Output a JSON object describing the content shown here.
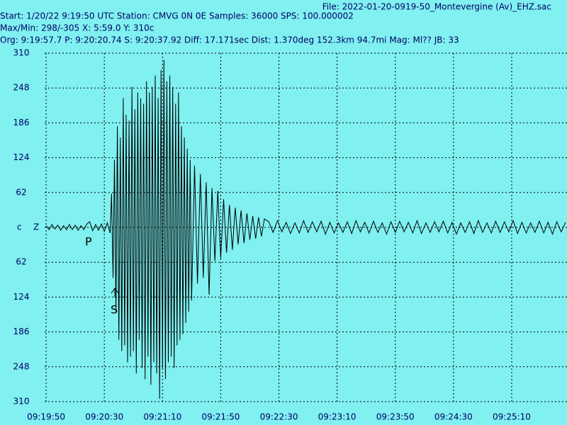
{
  "header": {
    "file": "File: 2022-01-20-0919-50_Montevergine (Av)_EHZ.sac",
    "start": "Start: 1/20/22  9:19:50 UTC Station: CMVG 0N 0E Samples: 36000  SPS: 100.000002",
    "maxmin": "Max/Min:  298/-305 X: 5:59.0 Y: 310c",
    "origin": "Org: 9:19:57.7 P: 9:20:20.74 S: 9:20:37.92 Diff: 17.171sec Dist: 1.370deg 152.3km 94.7mi  Mag: Ml?? JB: 33"
  },
  "chart_data": {
    "type": "line",
    "channel_label": "Z",
    "annotations": [
      "P",
      "S"
    ],
    "grid": true,
    "xlim": [
      33589,
      33948
    ],
    "xticks": [
      {
        "value": 33590,
        "label": "09:19:50"
      },
      {
        "value": 33630,
        "label": "09:20:30"
      },
      {
        "value": 33670,
        "label": "09:21:10"
      },
      {
        "value": 33710,
        "label": "09:21:50"
      },
      {
        "value": 33750,
        "label": "09:22:30"
      },
      {
        "value": 33790,
        "label": "09:23:10"
      },
      {
        "value": 33830,
        "label": "09:23:50"
      },
      {
        "value": 33870,
        "label": "09:24:30"
      },
      {
        "value": 33910,
        "label": "09:25:10"
      }
    ],
    "ylim": [
      -310,
      310
    ],
    "yticks": [
      310,
      248,
      186,
      124,
      62,
      {
        "value": 0,
        "label": "c"
      },
      {
        "value": -62,
        "label": "62"
      },
      {
        "value": -124,
        "label": "124"
      },
      {
        "value": -186,
        "label": "186"
      },
      {
        "value": -248,
        "label": "248"
      },
      {
        "value": -310,
        "label": "310"
      }
    ],
    "x": [
      33590,
      33592,
      33594,
      33596,
      33598,
      33600,
      33602,
      33604,
      33606,
      33608,
      33610,
      33612,
      33614,
      33616,
      33618,
      33620,
      33622,
      33624,
      33626,
      33628,
      33630,
      33632,
      33634,
      33635,
      33636,
      33637,
      33638,
      33639,
      33640,
      33641,
      33642,
      33643,
      33644,
      33645,
      33646,
      33647,
      33648,
      33649,
      33650,
      33651,
      33652,
      33653,
      33654,
      33655,
      33656,
      33657,
      33658,
      33659,
      33660,
      33661,
      33662,
      33663,
      33664,
      33665,
      33666,
      33667,
      33668,
      33669,
      33670,
      33671,
      33672,
      33673,
      33674,
      33675,
      33676,
      33677,
      33678,
      33679,
      33680,
      33681,
      33682,
      33683,
      33684,
      33685,
      33686,
      33687,
      33688,
      33689,
      33690,
      33692,
      33694,
      33696,
      33698,
      33700,
      33702,
      33704,
      33706,
      33708,
      33710,
      33712,
      33714,
      33716,
      33718,
      33720,
      33722,
      33724,
      33726,
      33728,
      33730,
      33732,
      33734,
      33736,
      33738,
      33740,
      33743,
      33746,
      33749,
      33752,
      33755,
      33758,
      33761,
      33764,
      33767,
      33770,
      33773,
      33776,
      33779,
      33782,
      33785,
      33788,
      33791,
      33794,
      33797,
      33800,
      33803,
      33806,
      33809,
      33812,
      33815,
      33818,
      33821,
      33824,
      33827,
      33830,
      33833,
      33836,
      33839,
      33842,
      33845,
      33848,
      33851,
      33854,
      33857,
      33860,
      33863,
      33866,
      33869,
      33872,
      33875,
      33878,
      33881,
      33884,
      33887,
      33890,
      33893,
      33896,
      33899,
      33902,
      33905,
      33908,
      33911,
      33914,
      33917,
      33920,
      33923,
      33926,
      33929,
      33932,
      33935,
      33938,
      33941,
      33944,
      33947
    ],
    "series": [
      {
        "color": "#000000",
        "values": [
          3,
          -4,
          5,
          -3,
          4,
          -5,
          3,
          -4,
          5,
          -4,
          4,
          -5,
          3,
          -4,
          6,
          10,
          -6,
          5,
          -5,
          6,
          -7,
          8,
          -10,
          60,
          -90,
          120,
          -150,
          180,
          -200,
          160,
          -220,
          230,
          -210,
          200,
          -240,
          190,
          -230,
          250,
          -220,
          210,
          -260,
          240,
          -200,
          230,
          -250,
          220,
          -270,
          260,
          -230,
          240,
          -280,
          250,
          -240,
          270,
          -260,
          230,
          -305,
          280,
          -250,
          298,
          -270,
          260,
          -240,
          270,
          -230,
          250,
          -250,
          220,
          -210,
          240,
          -200,
          180,
          -190,
          160,
          -170,
          140,
          -150,
          120,
          -130,
          110,
          -100,
          95,
          -90,
          80,
          -120,
          70,
          -60,
          65,
          -55,
          50,
          -45,
          40,
          -40,
          35,
          -30,
          30,
          -28,
          25,
          -22,
          20,
          -20,
          18,
          -16,
          15,
          10,
          -9,
          12,
          -8,
          9,
          -11,
          8,
          -10,
          12,
          -9,
          10,
          -8,
          11,
          -12,
          9,
          -10,
          8,
          -9,
          10,
          -11,
          12,
          -8,
          9,
          -10,
          11,
          -9,
          8,
          -12,
          10,
          -9,
          11,
          -8,
          9,
          -10,
          12,
          -11,
          8,
          -9,
          10,
          -8,
          11,
          -10,
          9,
          -12,
          8,
          -9,
          10,
          -11,
          12,
          -9,
          8,
          -10,
          11,
          -9,
          10,
          -8,
          12,
          -11,
          9,
          -10,
          8,
          -9,
          11,
          -10,
          9,
          -12,
          10,
          -8,
          9
        ]
      }
    ]
  }
}
